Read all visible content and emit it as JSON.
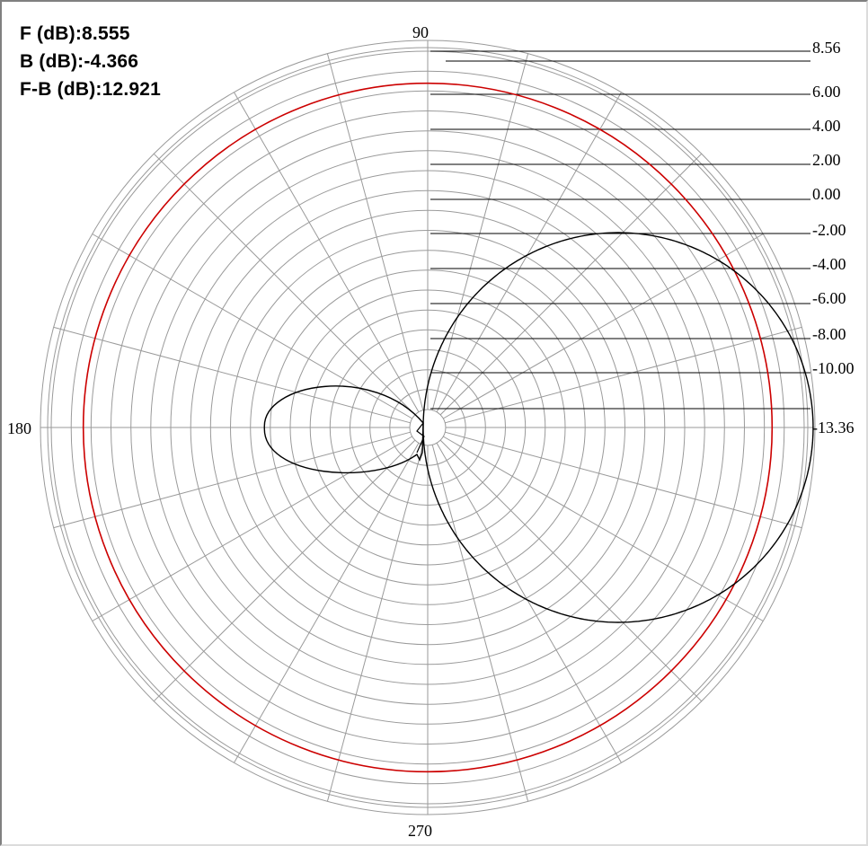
{
  "stats": {
    "front": "F (dB):8.555",
    "back": "B (dB):-4.366",
    "front_back": "F-B (dB):12.921"
  },
  "chart_data": {
    "type": "polar",
    "angle_labels": {
      "a90": "90",
      "a180": "180",
      "a270": "270"
    },
    "radial_scale_db": {
      "min": -13.36,
      "max": 8.56
    },
    "ring_labels": [
      "8.56",
      "6.00",
      "4.00",
      "2.00",
      "0.00",
      "-2.00",
      "-4.00",
      "-6.00",
      "-8.00",
      "-10.00",
      "-13.36"
    ],
    "ring_values": [
      8.56,
      6.0,
      4.0,
      2.0,
      0.0,
      -2.0,
      -4.0,
      -6.0,
      -8.0,
      -10.0,
      -13.36
    ],
    "spoke_step_deg": 15,
    "series": [
      {
        "color": "#cc0000",
        "shape": "circle",
        "value_db": 6.6
      },
      {
        "color": "#000000",
        "shape": "cardioid",
        "front_db": 8.555,
        "back_db": -4.366,
        "front_back_db": 12.921
      }
    ]
  }
}
